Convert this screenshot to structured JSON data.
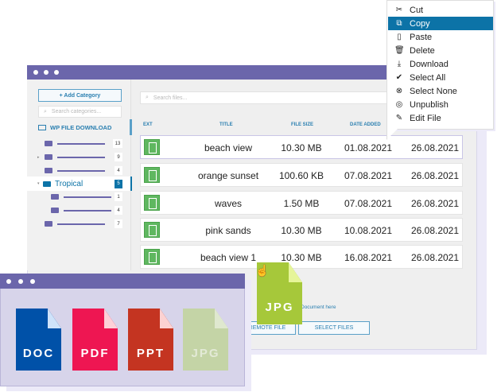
{
  "main_window": {
    "sidebar": {
      "add_category": "+ Add Category",
      "search_placeholder": "Search categories...",
      "brand": "WP FILE DOWNLOAD",
      "tree": [
        {
          "count": "13"
        },
        {
          "count": "9"
        },
        {
          "count": "4"
        },
        {
          "label": "Tropical",
          "count": "5",
          "selected": true
        },
        {
          "count": "1"
        },
        {
          "count": "4"
        },
        {
          "count": "7"
        }
      ]
    },
    "search_placeholder": "Search files...",
    "columns": [
      "EXT",
      "TITLE",
      "FILE SIZE",
      "DATE ADDED"
    ],
    "files": [
      {
        "title": "beach view",
        "size": "10.30 MB",
        "added": "01.08.2021",
        "modified": "26.08.2021"
      },
      {
        "title": "orange sunset",
        "size": "100.60 KB",
        "added": "07.08.2021",
        "modified": "26.08.2021"
      },
      {
        "title": "waves",
        "size": "1.50 MB",
        "added": "07.08.2021",
        "modified": "26.08.2021"
      },
      {
        "title": "pink sands",
        "size": "10.30 MB",
        "added": "10.08.2021",
        "modified": "26.08.2021"
      },
      {
        "title": "beach view 1",
        "size": "10.30 MB",
        "added": "16.08.2021",
        "modified": "26.08.2021"
      }
    ],
    "drop_text": "Document here",
    "remote_file": "REMOTE FILE",
    "select_files": "SELECT FILES"
  },
  "context_menu": [
    {
      "label": "Cut",
      "icon": "scissors-icon"
    },
    {
      "label": "Copy",
      "icon": "copy-icon",
      "active": true
    },
    {
      "label": "Paste",
      "icon": "clipboard-icon"
    },
    {
      "label": "Delete",
      "icon": "trash-icon"
    },
    {
      "label": "Download",
      "icon": "download-icon"
    },
    {
      "label": "Select All",
      "icon": "double-check-icon"
    },
    {
      "label": "Select None",
      "icon": "circle-x-icon"
    },
    {
      "label": "Unpublish",
      "icon": "eye-off-icon"
    },
    {
      "label": "Edit File",
      "icon": "pencil-icon"
    }
  ],
  "dragged_file": "JPG",
  "file_types": [
    {
      "label": "DOC",
      "color": "#0051a8",
      "fold": "#cfe3fa"
    },
    {
      "label": "PDF",
      "color": "#ee1652",
      "fold": "#fdd0d8"
    },
    {
      "label": "PPT",
      "color": "#c43421",
      "fold": "#fcd2d2"
    },
    {
      "label": "JPG",
      "color": "#c4d4a6",
      "fold": "#dfe8cf"
    }
  ],
  "colors": {
    "accent": "#6b66ab",
    "highlight": "#0c73a7",
    "jpg": "#a6c83a"
  }
}
